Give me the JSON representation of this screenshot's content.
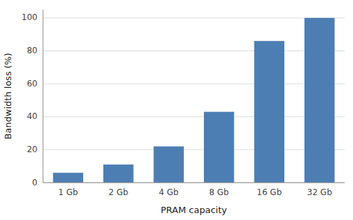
{
  "chart_data": {
    "type": "bar",
    "categories": [
      "1 Gb",
      "2 Gb",
      "4 Gb",
      "8 Gb",
      "16 Gb",
      "32 Gb"
    ],
    "values": [
      6,
      11,
      22,
      43,
      86,
      100
    ],
    "color": "#4d7eb3",
    "xlabel": "PRAM capacity",
    "ylabel": "Bandwidth loss (%)",
    "ylim": [
      0,
      105
    ],
    "yticks": [
      0,
      20,
      40,
      60,
      80,
      100
    ],
    "grid": true
  }
}
